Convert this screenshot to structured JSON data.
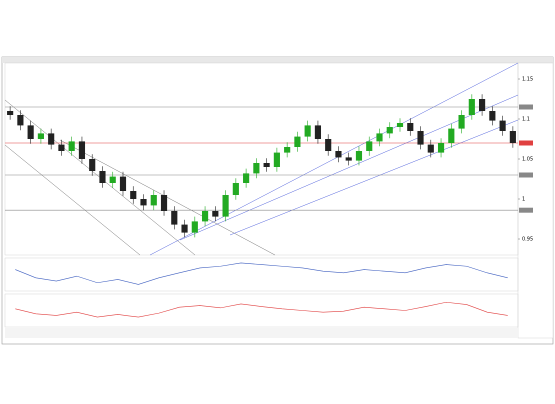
{
  "chart_data": {
    "type": "candlestick",
    "ohlc": [
      [
        1.11,
        1.116,
        1.099,
        1.105
      ],
      [
        1.105,
        1.111,
        1.086,
        1.092
      ],
      [
        1.092,
        1.098,
        1.069,
        1.075
      ],
      [
        1.075,
        1.088,
        1.069,
        1.082
      ],
      [
        1.082,
        1.088,
        1.062,
        1.068
      ],
      [
        1.068,
        1.074,
        1.054,
        1.06
      ],
      [
        1.06,
        1.078,
        1.054,
        1.072
      ],
      [
        1.072,
        1.078,
        1.044,
        1.05
      ],
      [
        1.05,
        1.056,
        1.029,
        1.035
      ],
      [
        1.035,
        1.041,
        1.014,
        1.02
      ],
      [
        1.02,
        1.034,
        1.014,
        1.028
      ],
      [
        1.028,
        1.034,
        1.004,
        1.01
      ],
      [
        1.01,
        1.016,
        0.994,
        1.0
      ],
      [
        1.0,
        1.006,
        0.986,
        0.992
      ],
      [
        0.992,
        1.011,
        0.986,
        1.005
      ],
      [
        1.005,
        1.011,
        0.979,
        0.985
      ],
      [
        0.985,
        0.991,
        0.962,
        0.968
      ],
      [
        0.968,
        0.974,
        0.952,
        0.958
      ],
      [
        0.958,
        0.978,
        0.952,
        0.972
      ],
      [
        0.972,
        0.991,
        0.966,
        0.985
      ],
      [
        0.985,
        0.991,
        0.972,
        0.978
      ],
      [
        0.978,
        1.011,
        0.972,
        1.005
      ],
      [
        1.005,
        1.026,
        0.999,
        1.02
      ],
      [
        1.02,
        1.038,
        1.014,
        1.032
      ],
      [
        1.032,
        1.051,
        1.026,
        1.045
      ],
      [
        1.045,
        1.051,
        1.034,
        1.04
      ],
      [
        1.04,
        1.064,
        1.034,
        1.058
      ],
      [
        1.058,
        1.071,
        1.052,
        1.065
      ],
      [
        1.065,
        1.084,
        1.059,
        1.078
      ],
      [
        1.078,
        1.098,
        1.072,
        1.092
      ],
      [
        1.092,
        1.098,
        1.069,
        1.075
      ],
      [
        1.075,
        1.081,
        1.054,
        1.06
      ],
      [
        1.06,
        1.066,
        1.046,
        1.052
      ],
      [
        1.052,
        1.058,
        1.042,
        1.048
      ],
      [
        1.048,
        1.066,
        1.042,
        1.06
      ],
      [
        1.06,
        1.078,
        1.054,
        1.072
      ],
      [
        1.072,
        1.088,
        1.066,
        1.082
      ],
      [
        1.082,
        1.096,
        1.076,
        1.09
      ],
      [
        1.09,
        1.101,
        1.084,
        1.095
      ],
      [
        1.095,
        1.101,
        1.079,
        1.085
      ],
      [
        1.085,
        1.091,
        1.062,
        1.068
      ],
      [
        1.068,
        1.074,
        1.052,
        1.058
      ],
      [
        1.058,
        1.076,
        1.052,
        1.07
      ],
      [
        1.07,
        1.094,
        1.064,
        1.088
      ],
      [
        1.088,
        1.111,
        1.082,
        1.105
      ],
      [
        1.105,
        1.131,
        1.099,
        1.125
      ],
      [
        1.125,
        1.131,
        1.104,
        1.11
      ],
      [
        1.11,
        1.116,
        1.092,
        1.098
      ],
      [
        1.098,
        1.104,
        1.079,
        1.085
      ],
      [
        1.085,
        1.091,
        1.064,
        1.07
      ]
    ],
    "up_color": "#22aa22",
    "down_color": "#222222",
    "ylim": [
      0.93,
      1.17
    ],
    "yticks": [
      0.95,
      1,
      1.05,
      1.1,
      1.15
    ],
    "levels": [
      1.115,
      1.07,
      1.03,
      0.986
    ],
    "level_colors": [
      "#888888",
      "#e04040",
      "#888888",
      "#888888"
    ],
    "indicators": [
      {
        "color": "#4060c0",
        "ylim": [
          -1,
          1
        ],
        "values": [
          0.3,
          -0.2,
          -0.4,
          -0.1,
          -0.5,
          -0.3,
          -0.6,
          -0.2,
          0.1,
          0.4,
          0.5,
          0.7,
          0.6,
          0.5,
          0.4,
          0.2,
          0.1,
          0.3,
          0.2,
          0.1,
          0.4,
          0.6,
          0.5,
          0.1,
          -0.2
        ]
      },
      {
        "color": "#e04040",
        "ylim": [
          0,
          100
        ],
        "values": [
          55,
          40,
          35,
          45,
          30,
          38,
          30,
          42,
          60,
          65,
          58,
          70,
          62,
          55,
          50,
          45,
          48,
          60,
          55,
          50,
          62,
          75,
          68,
          45,
          35
        ]
      }
    ]
  }
}
